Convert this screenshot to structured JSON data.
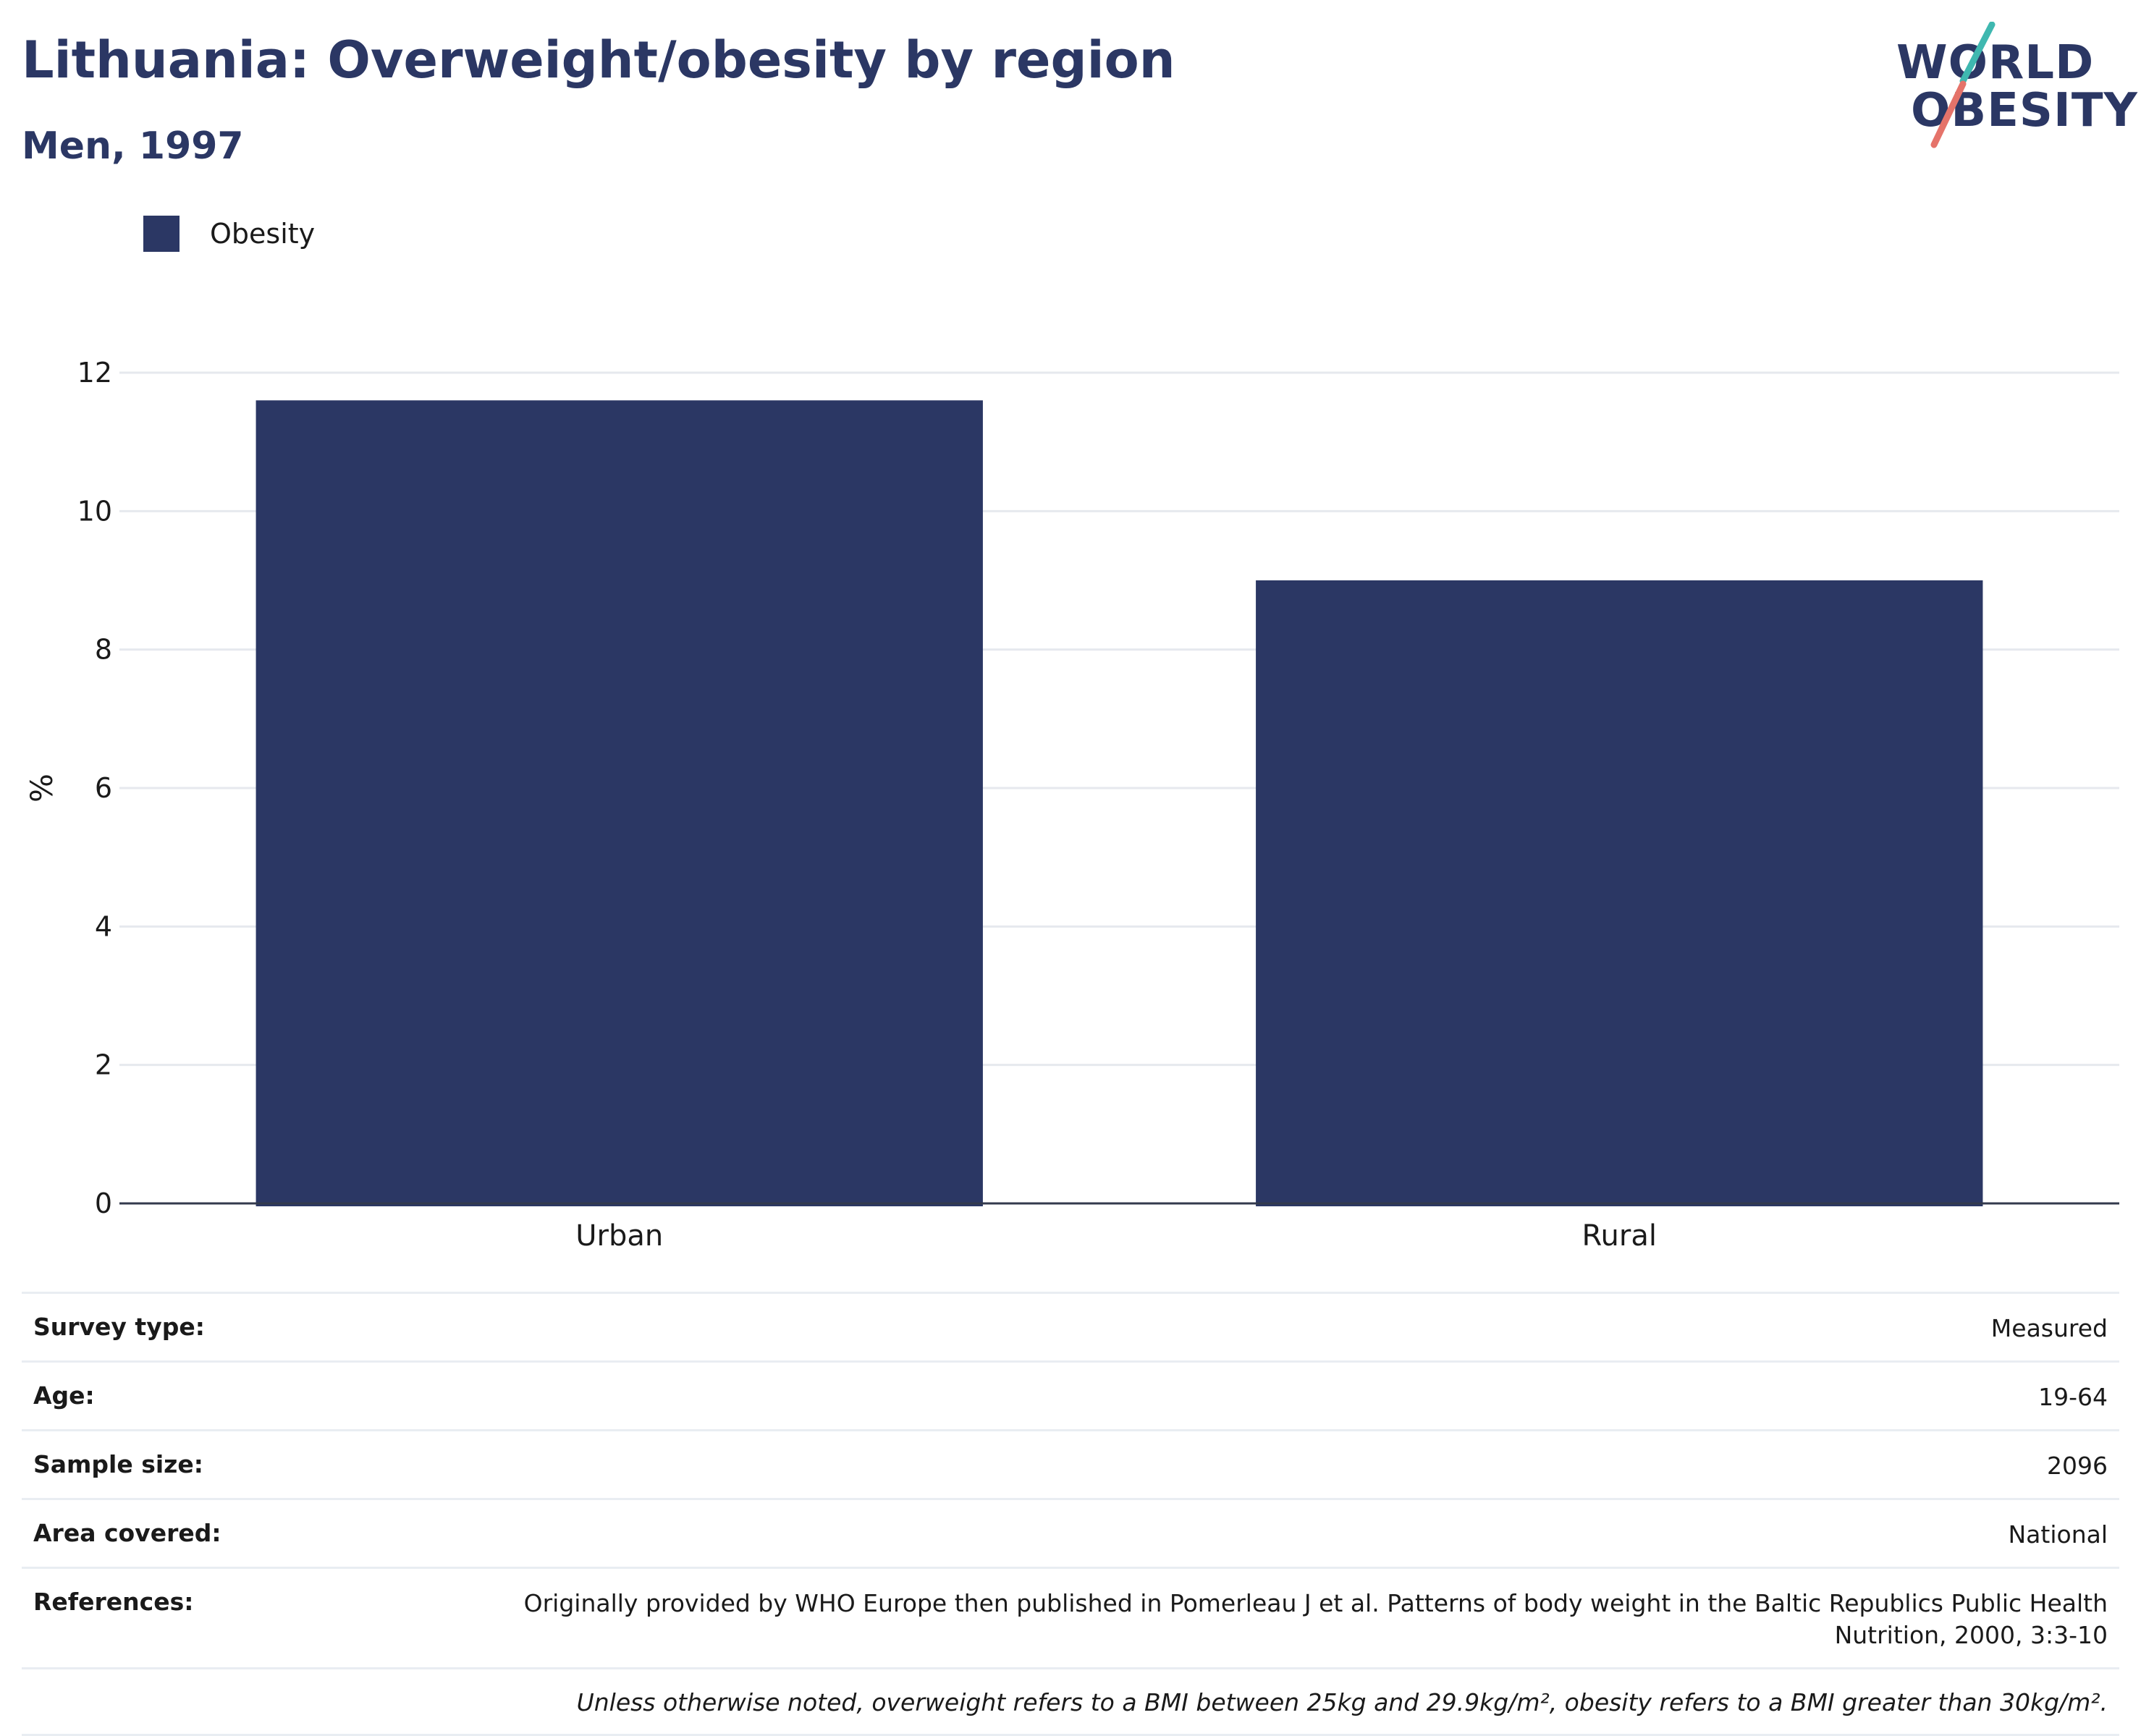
{
  "header": {
    "title": "Lithuania: Overweight/obesity by region",
    "subtitle": "Men, 1997"
  },
  "logo": {
    "line1": "WORLD",
    "line2": "OBESITY"
  },
  "legend": {
    "label": "Obesity",
    "color": "#2b3764"
  },
  "chart_data": {
    "type": "bar",
    "categories": [
      "Urban",
      "Rural"
    ],
    "series": [
      {
        "name": "Obesity",
        "values": [
          11.6,
          9.0
        ]
      }
    ],
    "ylabel": "%",
    "ylim": [
      0,
      12
    ],
    "yticks": [
      "0",
      "2",
      "4",
      "6",
      "8",
      "10",
      "12"
    ],
    "grid": true,
    "legend_position": "top-left",
    "color": "#2b3764"
  },
  "info": [
    {
      "key": "Survey type:",
      "value": "Measured"
    },
    {
      "key": "Age:",
      "value": "19-64"
    },
    {
      "key": "Sample size:",
      "value": "2096"
    },
    {
      "key": "Area covered:",
      "value": "National"
    },
    {
      "key": "References:",
      "value": "Originally provided by WHO Europe then published in Pomerleau J et al. Patterns of body weight in the Baltic Republics Public Health Nutrition, 2000, 3:3-10"
    }
  ],
  "note": "Unless otherwise noted, overweight refers to a BMI between 25kg and 29.9kg/m², obesity refers to a BMI greater than 30kg/m²."
}
